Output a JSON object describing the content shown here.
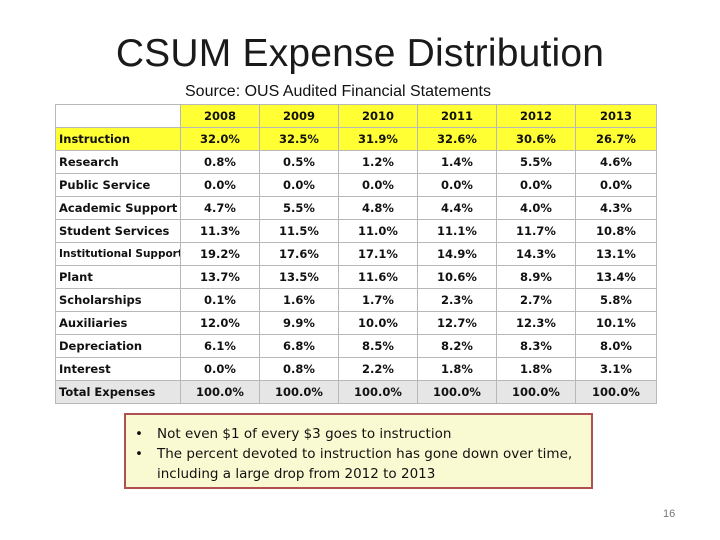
{
  "slide": {
    "title": "CSUM Expense Distribution",
    "source": "Source: OUS Audited Financial Statements",
    "page_number": "16"
  },
  "table": {
    "columns": [
      "2008",
      "2009",
      "2010",
      "2011",
      "2012",
      "2013"
    ],
    "rows": [
      {
        "label": "Instruction",
        "values": [
          "32.0%",
          "32.5%",
          "31.9%",
          "32.6%",
          "30.6%",
          "26.7%"
        ]
      },
      {
        "label": "Research",
        "values": [
          "0.8%",
          "0.5%",
          "1.2%",
          "1.4%",
          "5.5%",
          "4.6%"
        ]
      },
      {
        "label": "Public Service",
        "values": [
          "0.0%",
          "0.0%",
          "0.0%",
          "0.0%",
          "0.0%",
          "0.0%"
        ]
      },
      {
        "label": "Academic Support",
        "values": [
          "4.7%",
          "5.5%",
          "4.8%",
          "4.4%",
          "4.0%",
          "4.3%"
        ]
      },
      {
        "label": "Student Services",
        "values": [
          "11.3%",
          "11.5%",
          "11.0%",
          "11.1%",
          "11.7%",
          "10.8%"
        ]
      },
      {
        "label": "Institutional Support",
        "values": [
          "19.2%",
          "17.6%",
          "17.1%",
          "14.9%",
          "14.3%",
          "13.1%"
        ]
      },
      {
        "label": "Plant",
        "values": [
          "13.7%",
          "13.5%",
          "11.6%",
          "10.6%",
          "8.9%",
          "13.4%"
        ]
      },
      {
        "label": "Scholarships",
        "values": [
          "0.1%",
          "1.6%",
          "1.7%",
          "2.3%",
          "2.7%",
          "5.8%"
        ]
      },
      {
        "label": "Auxiliaries",
        "values": [
          "12.0%",
          "9.9%",
          "10.0%",
          "12.7%",
          "12.3%",
          "10.1%"
        ]
      },
      {
        "label": "Depreciation",
        "values": [
          "6.1%",
          "6.8%",
          "8.5%",
          "8.2%",
          "8.3%",
          "8.0%"
        ]
      },
      {
        "label": "Interest",
        "values": [
          "0.0%",
          "0.8%",
          "2.2%",
          "1.8%",
          "1.8%",
          "3.1%"
        ]
      },
      {
        "label": "Total Expenses",
        "values": [
          "100.0%",
          "100.0%",
          "100.0%",
          "100.0%",
          "100.0%",
          "100.0%"
        ]
      }
    ],
    "highlight_color": "#ffff33"
  },
  "callout": {
    "bullets": [
      "Not even $1 of every $3 goes to instruction",
      "The percent devoted to instruction has gone down over time, including a large drop from 2012 to 2013"
    ],
    "background_color": "#fafad2",
    "border_color": "#b05050"
  }
}
